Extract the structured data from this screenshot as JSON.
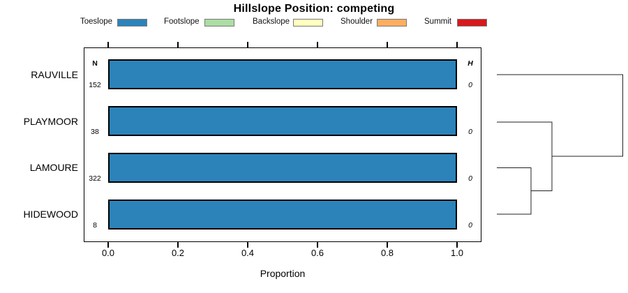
{
  "title": "Hillslope Position: competing",
  "legend": {
    "items": [
      {
        "label": "Toeslope",
        "color": "#2B83BA"
      },
      {
        "label": "Footslope",
        "color": "#ABDDA4"
      },
      {
        "label": "Backslope",
        "color": "#FFFFBF"
      },
      {
        "label": "Shoulder",
        "color": "#FDAE61"
      },
      {
        "label": "Summit",
        "color": "#D7191C"
      }
    ]
  },
  "columns": {
    "n_header": "N",
    "h_header": "H"
  },
  "rows": [
    {
      "label": "RAUVILLE",
      "n": "152",
      "h": "0"
    },
    {
      "label": "PLAYMOOR",
      "n": "38",
      "h": "0"
    },
    {
      "label": "LAMOURE",
      "n": "322",
      "h": "0"
    },
    {
      "label": "HIDEWOOD",
      "n": "8",
      "h": "0"
    }
  ],
  "axis": {
    "label": "Proportion",
    "ticks": [
      "0.0",
      "0.2",
      "0.4",
      "0.6",
      "0.8",
      "1.0"
    ]
  },
  "chart_data": {
    "type": "bar",
    "orientation": "horizontal",
    "stacked": true,
    "title": "Hillslope Position: competing",
    "xlabel": "Proportion",
    "xlim": [
      0,
      1.07
    ],
    "grid": false,
    "legend_position": "top",
    "categories": [
      "RAUVILLE",
      "PLAYMOOR",
      "LAMOURE",
      "HIDEWOOD"
    ],
    "series": [
      {
        "name": "Toeslope",
        "color": "#2B83BA",
        "values": [
          1.0,
          1.0,
          1.0,
          1.0
        ]
      },
      {
        "name": "Footslope",
        "color": "#ABDDA4",
        "values": [
          0,
          0,
          0,
          0
        ]
      },
      {
        "name": "Backslope",
        "color": "#FFFFBF",
        "values": [
          0,
          0,
          0,
          0
        ]
      },
      {
        "name": "Shoulder",
        "color": "#FDAE61",
        "values": [
          0,
          0,
          0,
          0
        ]
      },
      {
        "name": "Summit",
        "color": "#D7191C",
        "values": [
          0,
          0,
          0,
          0
        ]
      }
    ],
    "n_obs": [
      152,
      38,
      322,
      8
    ],
    "shannon_entropy_H": [
      0,
      0,
      0,
      0
    ],
    "dendrogram": {
      "side": "right",
      "leaf_order_top_to_bottom": [
        "RAUVILLE",
        "PLAYMOOR",
        "LAMOURE",
        "HIDEWOOD"
      ],
      "merges": [
        {
          "join": [
            "LAMOURE",
            "HIDEWOOD"
          ],
          "order": 1
        },
        {
          "join": [
            "PLAYMOOR",
            "(LAMOURE,HIDEWOOD)"
          ],
          "order": 2
        },
        {
          "join": [
            "RAUVILLE",
            "(PLAYMOOR,(LAMOURE,HIDEWOOD))"
          ],
          "order": 3
        }
      ]
    }
  }
}
